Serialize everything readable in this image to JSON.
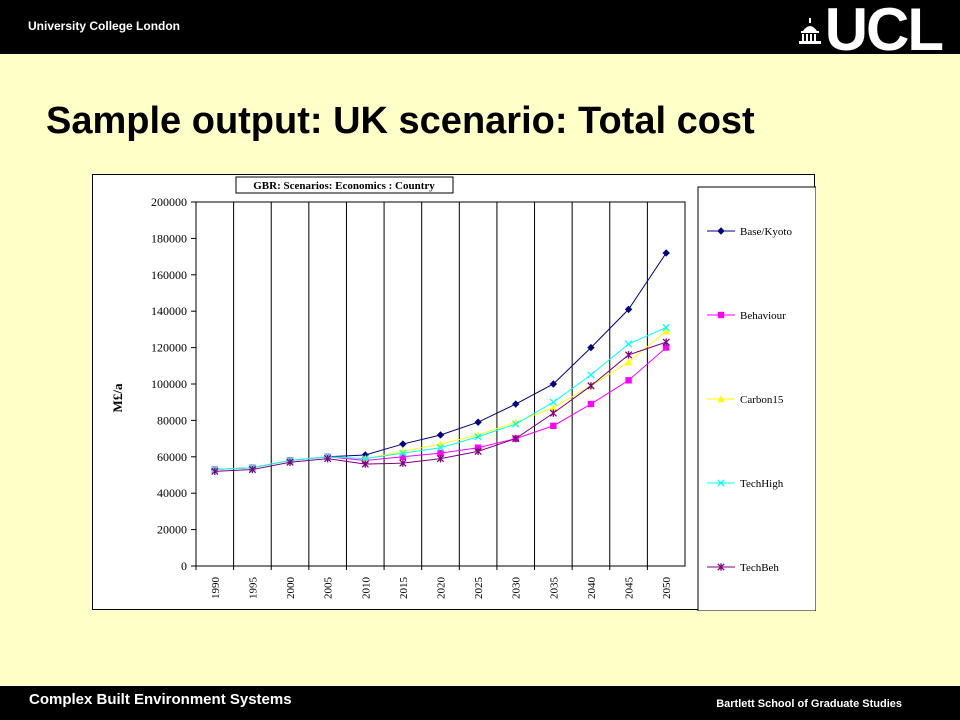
{
  "header": {
    "institution": "University College London",
    "logo_text": "UCL"
  },
  "slide": {
    "title": "Sample output: UK scenario: Total cost"
  },
  "footer": {
    "left": "Complex Built Environment Systems",
    "right": "Bartlett School of Graduate Studies"
  },
  "colors": {
    "background": "#ffffc8",
    "bars": "#000000",
    "Base/Kyoto": "#000080",
    "Behaviour": "#ff00ff",
    "Carbon15": "#ffff00",
    "TechHigh": "#00ffff",
    "TechBeh": "#800080"
  },
  "chart_data": {
    "type": "line",
    "title": "GBR: Scenarios: Economics : Country",
    "xlabel": "",
    "ylabel": "M£/a",
    "x": [
      "1990",
      "1995",
      "2000",
      "2005",
      "2010",
      "2015",
      "2020",
      "2025",
      "2030",
      "2035",
      "2040",
      "2045",
      "2050"
    ],
    "ylim": [
      0,
      200000
    ],
    "yticks": [
      0,
      20000,
      40000,
      60000,
      80000,
      100000,
      120000,
      140000,
      160000,
      180000,
      200000
    ],
    "grid": "vertical",
    "legend_position": "right",
    "series": [
      {
        "name": "Base/Kyoto",
        "marker": "diamond",
        "values": [
          53000,
          54000,
          58000,
          60000,
          61000,
          67000,
          72000,
          79000,
          89000,
          100000,
          120000,
          141000,
          172000
        ]
      },
      {
        "name": "Behaviour",
        "marker": "square",
        "values": [
          53000,
          54000,
          58000,
          60000,
          58000,
          60000,
          62000,
          65000,
          70000,
          77000,
          89000,
          102000,
          120000
        ]
      },
      {
        "name": "Carbon15",
        "marker": "triangle",
        "values": [
          53000,
          54000,
          58000,
          60000,
          59000,
          63000,
          67000,
          72000,
          79000,
          87000,
          99000,
          112000,
          129000
        ]
      },
      {
        "name": "TechHigh",
        "marker": "x",
        "values": [
          53000,
          54000,
          58000,
          60000,
          59000,
          62000,
          65000,
          71000,
          78000,
          90000,
          105000,
          122000,
          131000
        ]
      },
      {
        "name": "TechBeh",
        "marker": "star",
        "values": [
          52000,
          53000,
          57000,
          59000,
          56000,
          56500,
          59000,
          63000,
          70000,
          84000,
          99000,
          116000,
          123000
        ]
      }
    ]
  }
}
